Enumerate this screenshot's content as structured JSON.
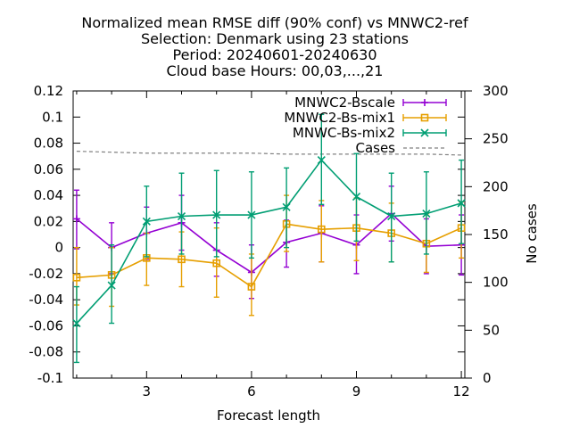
{
  "chart_data": {
    "type": "line",
    "title_lines": [
      "Normalized mean RMSE diff (90% conf) vs MNWC2-ref",
      "Selection: Denmark using    23 stations",
      "Period: 20240601-20240630",
      "Cloud base   Hours: 00,03,...,21"
    ],
    "xlabel": "Forecast length",
    "ylabel": "",
    "y2label": "No cases",
    "xlim": [
      0.9,
      12.1
    ],
    "ylim": [
      -0.1,
      0.12
    ],
    "y2lim": [
      0,
      300
    ],
    "xticks": [
      "3",
      "6",
      "9",
      "12"
    ],
    "yticks": [
      "0.12",
      "0.1",
      "0.08",
      "0.06",
      "0.04",
      "0.02",
      "0",
      "-0.02",
      "-0.04",
      "-0.06",
      "-0.08",
      "-0.1"
    ],
    "y2ticks": [
      "300",
      "250",
      "200",
      "150",
      "100",
      "50",
      "0"
    ],
    "legend_position": "top-right",
    "x": [
      1,
      2,
      3,
      4,
      5,
      6,
      7,
      8,
      9,
      10,
      11,
      12
    ],
    "series": [
      {
        "name": "MNWC2-Bscale",
        "color": "#9400d3",
        "marker": "plus",
        "values": [
          0.022,
          0.0,
          0.011,
          0.019,
          -0.002,
          -0.019,
          0.004,
          0.011,
          0.002,
          0.026,
          0.001,
          0.002
        ],
        "err_low": [
          -0.001,
          -0.02,
          -0.009,
          -0.002,
          -0.022,
          -0.039,
          -0.015,
          -0.011,
          -0.02,
          0.005,
          -0.02,
          -0.021
        ],
        "err_high": [
          0.044,
          0.019,
          0.031,
          0.04,
          0.019,
          0.002,
          0.021,
          0.032,
          0.025,
          0.047,
          0.022,
          0.025
        ]
      },
      {
        "name": "MNWC2-Bs-mix1",
        "color": "#e69f00",
        "marker": "square",
        "values": [
          -0.023,
          -0.021,
          -0.008,
          -0.009,
          -0.012,
          -0.03,
          0.018,
          0.014,
          0.015,
          0.011,
          0.003,
          0.015
        ],
        "err_low": [
          -0.044,
          -0.045,
          -0.029,
          -0.03,
          -0.038,
          -0.052,
          -0.003,
          -0.011,
          -0.01,
          -0.011,
          -0.019,
          -0.008
        ],
        "err_high": [
          0.0,
          0.0,
          0.011,
          0.012,
          0.015,
          -0.005,
          0.04,
          0.036,
          0.038,
          0.034,
          0.026,
          0.035
        ]
      },
      {
        "name": "MNWC-Bs-mix2",
        "color": "#009e73",
        "marker": "cross",
        "values": [
          -0.058,
          -0.029,
          0.02,
          0.024,
          0.025,
          0.025,
          0.031,
          0.067,
          0.039,
          0.024,
          0.026,
          0.034
        ],
        "err_low": [
          -0.088,
          -0.058,
          -0.007,
          -0.005,
          -0.007,
          -0.008,
          0.0,
          0.033,
          0.005,
          -0.011,
          -0.005,
          0.003
        ],
        "err_high": [
          -0.03,
          0.002,
          0.047,
          0.057,
          0.059,
          0.058,
          0.061,
          0.102,
          0.072,
          0.057,
          0.058,
          0.067
        ]
      }
    ],
    "cases": {
      "name": "Cases",
      "color": "#808080",
      "axis": "right",
      "values": [
        237,
        236,
        235,
        235,
        235,
        235,
        234,
        234,
        234,
        234,
        234,
        233
      ]
    }
  }
}
